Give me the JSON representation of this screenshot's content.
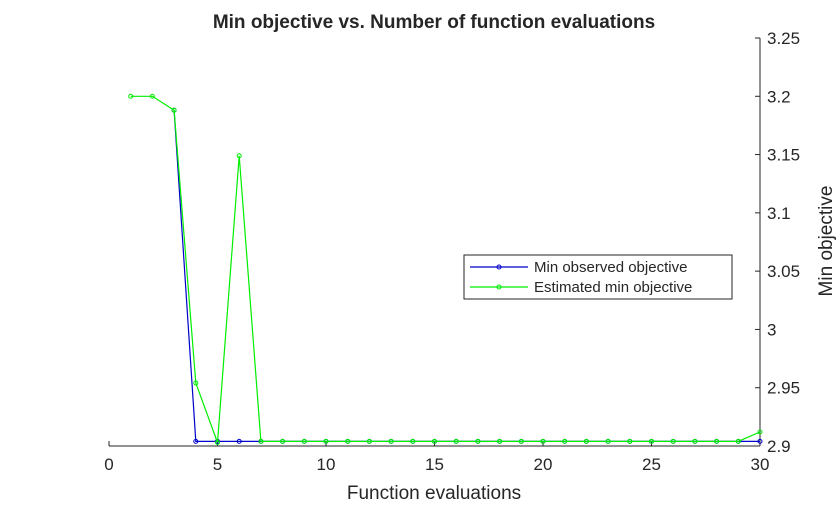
{
  "chart_data": {
    "type": "line",
    "title": "Min objective vs. Number of function evaluations",
    "xlabel": "Function evaluations",
    "ylabel": "Min objective",
    "xlim": [
      0,
      30
    ],
    "ylim": [
      2.9,
      3.25
    ],
    "xticks": [
      0,
      5,
      10,
      15,
      20,
      25,
      30
    ],
    "yticks": [
      2.9,
      2.95,
      3,
      3.05,
      3.1,
      3.15,
      3.2,
      3.25
    ],
    "xtick_labels": [
      "0",
      "5",
      "10",
      "15",
      "20",
      "25",
      "30"
    ],
    "ytick_labels": [
      "2.9",
      "2.95",
      "3",
      "3.05",
      "3.1",
      "3.15",
      "3.2",
      "3.25"
    ],
    "y_axis_side": "right",
    "grid": false,
    "legend_position": "center-right",
    "series": [
      {
        "name": "Min observed objective",
        "color": "#0000cc",
        "x": [
          3,
          4,
          5,
          6,
          7,
          8,
          9,
          10,
          11,
          12,
          13,
          14,
          15,
          16,
          17,
          18,
          19,
          20,
          21,
          22,
          23,
          24,
          25,
          26,
          27,
          28,
          29,
          30
        ],
        "y": [
          3.188,
          2.904,
          2.904,
          2.904,
          2.904,
          2.904,
          2.904,
          2.904,
          2.904,
          2.904,
          2.904,
          2.904,
          2.904,
          2.904,
          2.904,
          2.904,
          2.904,
          2.904,
          2.904,
          2.904,
          2.904,
          2.904,
          2.904,
          2.904,
          2.904,
          2.904,
          2.904,
          2.904
        ]
      },
      {
        "name": "Estimated min objective",
        "color": "#00ee00",
        "x": [
          1,
          2,
          3,
          4,
          5,
          6,
          7,
          8,
          9,
          10,
          11,
          12,
          13,
          14,
          15,
          16,
          17,
          18,
          19,
          20,
          21,
          22,
          23,
          24,
          25,
          26,
          27,
          28,
          29,
          30
        ],
        "y": [
          3.2,
          3.2,
          3.188,
          2.954,
          2.903,
          3.149,
          2.904,
          2.904,
          2.904,
          2.904,
          2.904,
          2.904,
          2.904,
          2.904,
          2.904,
          2.904,
          2.904,
          2.904,
          2.904,
          2.904,
          2.904,
          2.904,
          2.904,
          2.904,
          2.904,
          2.904,
          2.904,
          2.904,
          2.904,
          2.912
        ]
      }
    ]
  }
}
